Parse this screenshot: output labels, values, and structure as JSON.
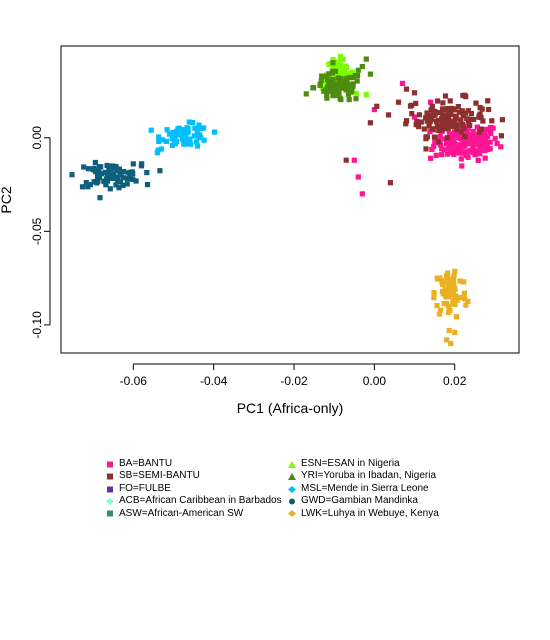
{
  "chart_data": {
    "type": "scatter",
    "title": "",
    "xlabel": "PC1 (Africa-only)",
    "ylabel": "PC2",
    "xlim": [
      -0.078,
      0.036
    ],
    "ylim": [
      -0.115,
      0.049
    ],
    "xticks": [
      -0.06,
      -0.04,
      -0.02,
      0.0,
      0.02
    ],
    "xtick_labels": [
      "-0.06",
      "-0.04",
      "-0.02",
      "0.00",
      "0.02"
    ],
    "yticks": [
      -0.1,
      -0.05,
      0.0
    ],
    "ytick_labels": [
      "-0.10",
      "-0.05",
      "0.00"
    ],
    "grid": false,
    "legend_position": "bottom",
    "series": [
      {
        "name": "BA=BANTU",
        "color": "#ff1493",
        "marker": "square",
        "clusters": [
          {
            "cx": 0.023,
            "cy": -0.002,
            "sx": 0.004,
            "sy": 0.005,
            "n": 160
          }
        ],
        "points": [
          [
            -0.005,
            -0.012
          ],
          [
            -0.004,
            -0.021
          ],
          [
            -0.003,
            -0.03
          ],
          [
            0.0,
            0.015
          ],
          [
            0.007,
            0.029
          ],
          [
            0.01,
            0.011
          ],
          [
            0.014,
            0.019
          ],
          [
            0.016,
            0.0
          ],
          [
            0.014,
            -0.011
          ]
        ]
      },
      {
        "name": "SB=SEMI-BANTU",
        "color": "#8b2f2f",
        "marker": "square",
        "clusters": [
          {
            "cx": 0.018,
            "cy": 0.011,
            "sx": 0.005,
            "sy": 0.005,
            "n": 130
          }
        ],
        "points": [
          [
            -0.007,
            -0.012
          ],
          [
            0.004,
            -0.024
          ],
          [
            -0.001,
            0.008
          ],
          [
            0.01,
            0.024
          ],
          [
            0.008,
            0.026
          ],
          [
            0.006,
            0.019
          ]
        ]
      },
      {
        "name": "FO=FULBE",
        "color": "#663399",
        "marker": "square",
        "clusters": [],
        "points": []
      },
      {
        "name": "ACB=African Caribbean in Barbados",
        "color": "#7fffd4",
        "marker": "diamond",
        "clusters": [],
        "points": []
      },
      {
        "name": "ASW=African-American SW",
        "color": "#2f8f7f",
        "marker": "square",
        "clusters": [],
        "points": []
      },
      {
        "name": "ESN=ESAN in Nigeria",
        "color": "#7cfc00",
        "marker": "triangle",
        "clusters": [
          {
            "cx": -0.009,
            "cy": 0.034,
            "sx": 0.002,
            "sy": 0.004,
            "n": 55
          }
        ],
        "points": [
          [
            -0.002,
            0.023
          ]
        ]
      },
      {
        "name": "YRI=Yoruba in Ibadan, Nigeria",
        "color": "#4d8c0f",
        "marker": "triangle",
        "clusters": [
          {
            "cx": -0.009,
            "cy": 0.027,
            "sx": 0.003,
            "sy": 0.004,
            "n": 80
          }
        ],
        "points": [
          [
            -0.003,
            0.038
          ],
          [
            -0.001,
            0.034
          ],
          [
            -0.002,
            0.042
          ],
          [
            -0.004,
            0.036
          ]
        ]
      },
      {
        "name": "MSL=Mende in Sierra Leone",
        "color": "#00bfff",
        "marker": "diamond",
        "clusters": [
          {
            "cx": -0.047,
            "cy": 0.001,
            "sx": 0.003,
            "sy": 0.003,
            "n": 70
          }
        ],
        "points": [
          [
            -0.053,
            -0.006
          ],
          [
            -0.054,
            -0.008
          ]
        ]
      },
      {
        "name": "GWD=Gambian Mandinka",
        "color": "#0e5f7e",
        "marker": "circle",
        "clusters": [
          {
            "cx": -0.066,
            "cy": -0.02,
            "sx": 0.004,
            "sy": 0.003,
            "n": 90
          }
        ],
        "points": [
          [
            -0.058,
            -0.015
          ],
          [
            -0.06,
            -0.014
          ]
        ]
      },
      {
        "name": "LWK=Luhya in Webuye, Kenya",
        "color": "#eab020",
        "marker": "diamond",
        "clusters": [
          {
            "cx": 0.019,
            "cy": -0.083,
            "sx": 0.002,
            "sy": 0.007,
            "n": 75
          }
        ],
        "points": [
          [
            0.018,
            -0.108
          ],
          [
            0.019,
            -0.11
          ],
          [
            0.02,
            -0.104
          ]
        ]
      }
    ]
  }
}
